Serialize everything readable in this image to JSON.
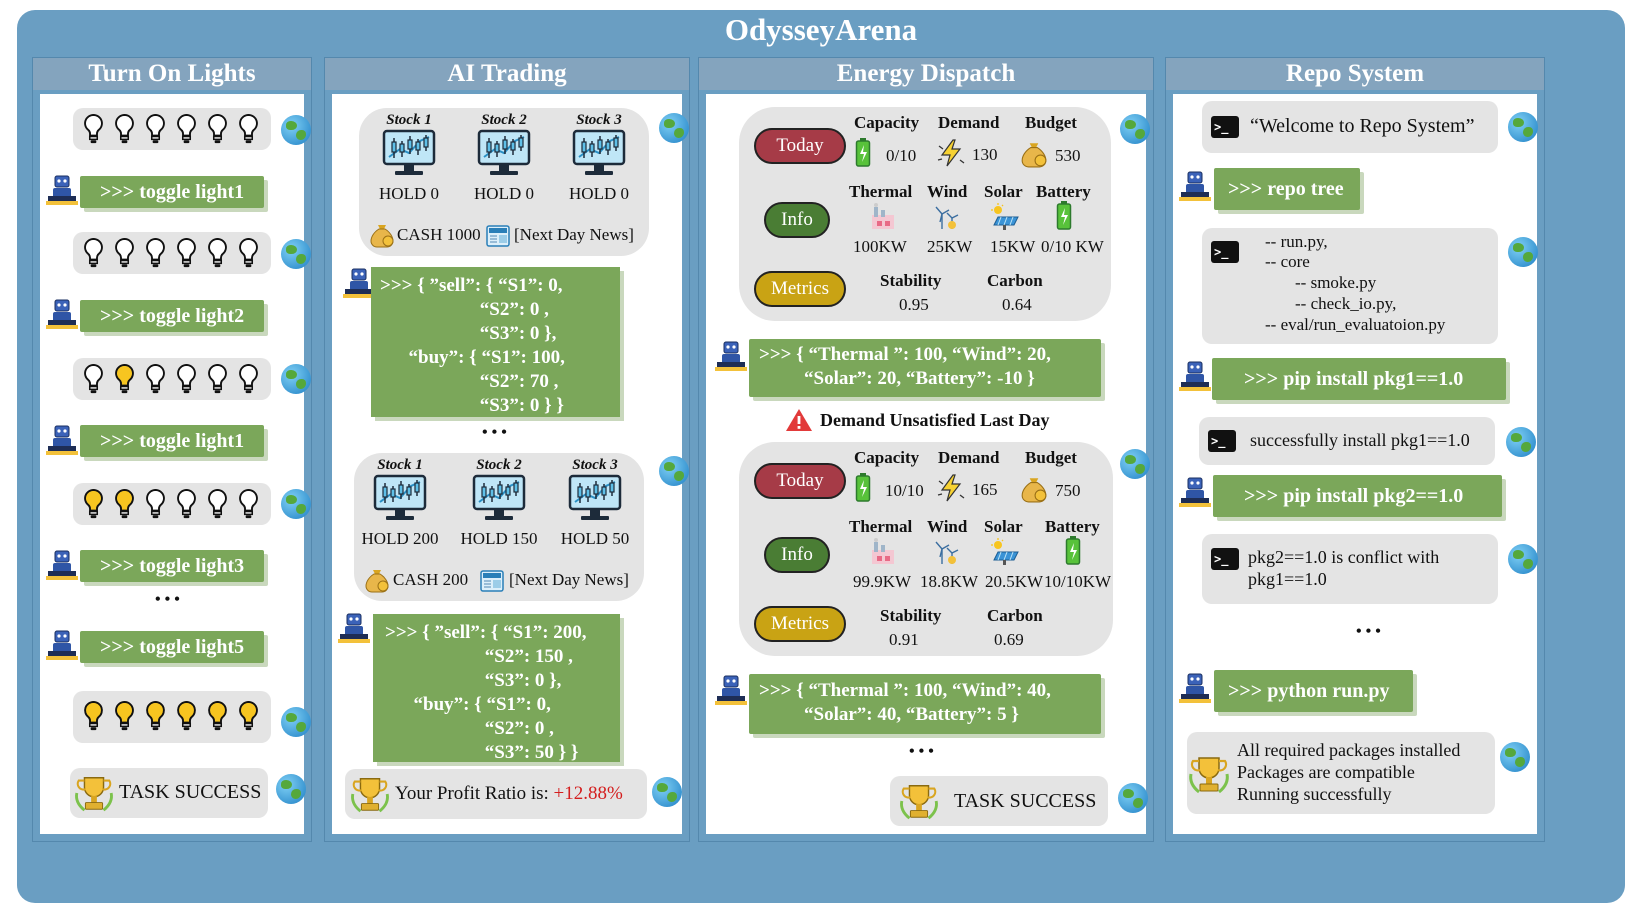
{
  "title": "OdysseyArena",
  "colors": {
    "frame": "#6a9ec2",
    "header": "#84a4be",
    "command": "#7ba75a",
    "today": "#a63b47",
    "info": "#4a7d34",
    "metrics": "#c9a314",
    "profit": "#d41e1e"
  },
  "lights": {
    "title": "Turn On Lights",
    "cmd1": ">>> toggle light1",
    "cmd2": ">>> toggle light2",
    "cmd3": ">>> toggle light1",
    "cmd4": ">>> toggle light3",
    "cmd5": ">>> toggle light5",
    "ellipsis": "• • •",
    "success": "TASK SUCCESS",
    "states": [
      [
        0,
        0,
        0,
        0,
        0,
        0
      ],
      [
        0,
        0,
        0,
        0,
        0,
        0
      ],
      [
        0,
        1,
        0,
        0,
        0,
        0
      ],
      [
        1,
        1,
        0,
        0,
        0,
        0
      ],
      [
        1,
        1,
        1,
        1,
        1,
        1
      ]
    ]
  },
  "trading": {
    "title": "AI Trading",
    "s1": {
      "names": [
        "Stock 1",
        "Stock 2",
        "Stock 3"
      ],
      "holds": [
        "HOLD 0",
        "HOLD 0",
        "HOLD 0"
      ],
      "cash": "CASH 1000",
      "news": "[Next Day News]"
    },
    "a1": ">>> { ”sell”: { “S1”: 0,\n                     “S2”: 0 ,\n                     “S3”: 0 },\n      “buy”: { “S1”: 100,\n                     “S2”: 70 ,\n                     “S3”: 0 } }",
    "ellipsis": "• • •",
    "s2": {
      "names": [
        "Stock 1",
        "Stock 2",
        "Stock 3"
      ],
      "holds": [
        "HOLD 200",
        "HOLD 150",
        "HOLD 50"
      ],
      "cash": "CASH 200",
      "news": "[Next Day News]"
    },
    "a2": ">>> { ”sell”: { “S1”: 200,\n                     “S2”: 150 ,\n                     “S3”: 0 },\n      “buy”: { “S1”: 0,\n                     “S2”: 0 ,\n                     “S3”: 50 } }",
    "profit_label": "Your Profit Ratio is: ",
    "profit_value": "+12.88%"
  },
  "energy": {
    "title": "Energy Dispatch",
    "today": "Today",
    "info": "Info",
    "metrics": "Metrics",
    "h_capacity": "Capacity",
    "h_demand": "Demand",
    "h_budget": "Budget",
    "h_thermal": "Thermal",
    "h_wind": "Wind",
    "h_solar": "Solar",
    "h_battery": "Battery",
    "h_stability": "Stability",
    "h_carbon": "Carbon",
    "d1": {
      "capacity": "0/10",
      "demand": "130",
      "budget": "530",
      "thermal": "100KW",
      "wind": "25KW",
      "solar": "15KW",
      "battery": "0/10 KW",
      "stability": "0.95",
      "carbon": "0.64"
    },
    "a1_l1": ">>> { “Thermal ”: 100,  “Wind”: 20,",
    "a1_l2": "“Solar”: 20, “Battery”: -10 }",
    "warning": "Demand Unsatisfied Last Day",
    "d2": {
      "capacity": "10/10",
      "demand": "165",
      "budget": "750",
      "thermal": "99.9KW",
      "wind": "18.8KW",
      "solar": "20.5KW",
      "battery": "10/10KW",
      "stability": "0.91",
      "carbon": "0.69"
    },
    "a2_l1": ">>> { “Thermal ”: 100,  “Wind”: 40,",
    "a2_l2": "“Solar”: 40, “Battery”: 5 }",
    "ellipsis": "• • •",
    "success": "TASK SUCCESS"
  },
  "repo": {
    "title": "Repo System",
    "welcome": "“Welcome to Repo System”",
    "cmd1": ">>>  repo tree",
    "tree": [
      "-- run.py,",
      "-- core",
      "-- smoke.py",
      "-- check_io.py,",
      "-- eval/run_evaluatoion.py"
    ],
    "cmd2": ">>> pip install pkg1==1.0",
    "resp2": "successfully install pkg1==1.0",
    "cmd3": ">>> pip install pkg2==1.0",
    "resp3_l1": "pkg2==1.0 is conflict with",
    "resp3_l2": "pkg1==1.0",
    "ellipsis": "• • •",
    "cmd4": ">>> python run.py",
    "final": [
      "All required packages installed",
      "Packages are compatible",
      "Running successfully"
    ],
    "prompt": ">_"
  }
}
